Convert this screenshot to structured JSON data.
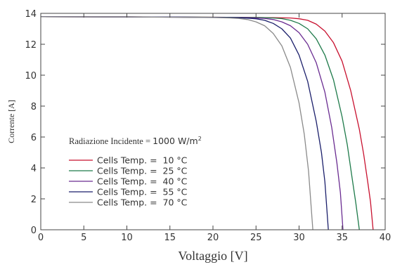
{
  "chart_data": {
    "type": "line",
    "xlabel": "Voltaggio [V]",
    "ylabel": "Corrente [A]",
    "xlim": [
      0,
      40
    ],
    "ylim": [
      0,
      14
    ],
    "xticks": [
      "0",
      "5",
      "10",
      "15",
      "20",
      "25",
      "30",
      "35",
      "40"
    ],
    "yticks": [
      "0",
      "2",
      "4",
      "6",
      "8",
      "10",
      "12",
      "14"
    ],
    "grid": false,
    "legend_placement": "lower-left",
    "legend_title": {
      "prefix": "Radiazione Incidente = ",
      "value": "1000 W/m",
      "superscript": "2"
    },
    "series": [
      {
        "name": "Cells Temp. =  10 °C",
        "color": "#c8102e",
        "x": [
          0,
          10,
          20,
          25,
          27,
          28,
          29,
          30,
          31,
          32,
          33,
          34,
          35,
          36,
          37,
          37.5,
          38,
          38.3,
          38.6
        ],
        "y": [
          13.78,
          13.77,
          13.75,
          13.73,
          13.72,
          13.71,
          13.7,
          13.65,
          13.55,
          13.3,
          12.85,
          12.1,
          10.9,
          9.0,
          6.5,
          4.9,
          3.0,
          1.8,
          0
        ]
      },
      {
        "name": "Cells Temp. =  25 °C",
        "color": "#1e7a4a",
        "x": [
          0,
          10,
          20,
          25,
          26,
          27,
          28,
          29,
          30,
          31,
          32,
          33,
          34,
          35,
          35.6,
          36.2,
          36.6,
          37.0
        ],
        "y": [
          13.78,
          13.77,
          13.75,
          13.73,
          13.72,
          13.7,
          13.66,
          13.55,
          13.35,
          13.0,
          12.35,
          11.3,
          9.7,
          7.3,
          5.5,
          3.2,
          1.7,
          0
        ]
      },
      {
        "name": "Cells Temp. =  40 °C",
        "color": "#6a2c91",
        "x": [
          0,
          10,
          20,
          24,
          25,
          26,
          27,
          28,
          29,
          30,
          31,
          32,
          33,
          33.8,
          34.4,
          34.8,
          35.1
        ],
        "y": [
          13.78,
          13.77,
          13.74,
          13.72,
          13.7,
          13.67,
          13.6,
          13.45,
          13.2,
          12.75,
          12.0,
          10.8,
          8.9,
          6.6,
          4.3,
          2.4,
          0
        ]
      },
      {
        "name": "Cells Temp. =  55 °C",
        "color": "#1b1f6b",
        "x": [
          0,
          10,
          20,
          23,
          24,
          25,
          26,
          27,
          28,
          29,
          30,
          31,
          32,
          32.6,
          33.0,
          33.4
        ],
        "y": [
          13.78,
          13.77,
          13.74,
          13.71,
          13.69,
          13.65,
          13.55,
          13.35,
          13.0,
          12.4,
          11.3,
          9.6,
          7.0,
          5.0,
          3.1,
          0
        ]
      },
      {
        "name": "Cells Temp. =  70 °C",
        "color": "#8a8a8a",
        "x": [
          0,
          10,
          20,
          22,
          23,
          24,
          25,
          26,
          27,
          28,
          29,
          30,
          30.6,
          31.1,
          31.6
        ],
        "y": [
          13.78,
          13.77,
          13.73,
          13.7,
          13.67,
          13.6,
          13.45,
          13.2,
          12.7,
          11.9,
          10.5,
          8.2,
          6.2,
          3.8,
          0
        ]
      }
    ]
  }
}
